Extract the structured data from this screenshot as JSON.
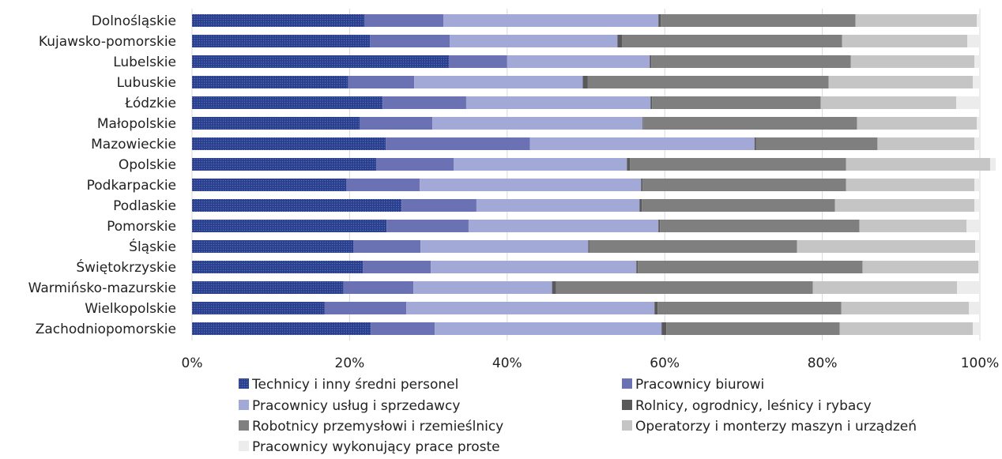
{
  "chart_data": {
    "type": "bar",
    "orientation": "horizontal",
    "stacked": true,
    "normalized": true,
    "categories": [
      "Dolnośląskie",
      "Kujawsko-pomorskie",
      "Lubelskie",
      "Lubuskie",
      "Łódzkie",
      "Małopolskie",
      "Mazowieckie",
      "Opolskie",
      "Podkarpackie",
      "Podlaskie",
      "Pomorskie",
      "Śląskie",
      "Świętokrzyskie",
      "Warmińsko-mazurskie",
      "Wielkopolskie",
      "Zachodniopomorskie"
    ],
    "xlim": [
      0,
      100
    ],
    "xticks": [
      "0%",
      "20%",
      "40%",
      "60%",
      "80%",
      "100%"
    ],
    "grid": "vertical",
    "legend_position": "bottom",
    "series": [
      {
        "name": "Technicy i inny średni personel",
        "color": "#2E4593",
        "pattern": "dotted",
        "values": [
          21.9,
          22.6,
          32.6,
          19.8,
          24.2,
          21.3,
          24.6,
          23.4,
          19.6,
          26.6,
          24.7,
          20.5,
          21.7,
          19.2,
          16.8,
          22.7
        ]
      },
      {
        "name": "Pracownicy biurowi",
        "color": "#6A72B3",
        "values": [
          10.0,
          10.1,
          7.4,
          8.4,
          10.6,
          9.2,
          18.3,
          9.8,
          9.3,
          9.5,
          10.4,
          8.5,
          8.6,
          8.9,
          10.4,
          8.1
        ]
      },
      {
        "name": "Pracownicy usług i sprzedawcy",
        "color": "#A3A9D6",
        "values": [
          27.3,
          21.3,
          18.1,
          21.4,
          23.4,
          26.7,
          28.5,
          22.0,
          28.1,
          20.7,
          24.1,
          21.3,
          26.1,
          17.6,
          31.5,
          28.8
        ]
      },
      {
        "name": "Rolnicy, ogrodnicy, leśnicy i rybacy",
        "color": "#595959",
        "values": [
          0.3,
          0.6,
          0.2,
          0.6,
          0.2,
          0.1,
          0.2,
          0.4,
          0.2,
          0.3,
          0.2,
          0.1,
          0.2,
          0.5,
          0.4,
          0.6
        ]
      },
      {
        "name": "Robotnicy przemysłowi i rzemieślnicy",
        "color": "#7F7F7F",
        "values": [
          24.7,
          27.9,
          25.3,
          30.6,
          21.4,
          27.1,
          15.4,
          27.4,
          25.8,
          24.5,
          25.3,
          26.4,
          28.5,
          32.6,
          23.3,
          22.0
        ]
      },
      {
        "name": "Operatorzy i monterzy maszyn i urządzeń",
        "color": "#C5C5C5",
        "values": [
          15.4,
          15.9,
          15.7,
          18.3,
          17.2,
          15.2,
          12.3,
          18.3,
          16.3,
          17.7,
          13.6,
          22.6,
          14.7,
          18.3,
          16.2,
          16.9
        ]
      },
      {
        "name": "Pracownicy wykonujący prace proste",
        "color": "#ECECEC",
        "values": [
          0.4,
          1.6,
          0.7,
          0.9,
          3.0,
          0.4,
          0.7,
          0.7,
          0.7,
          0.7,
          1.7,
          0.6,
          0.2,
          2.9,
          1.4,
          0.9
        ]
      }
    ]
  }
}
